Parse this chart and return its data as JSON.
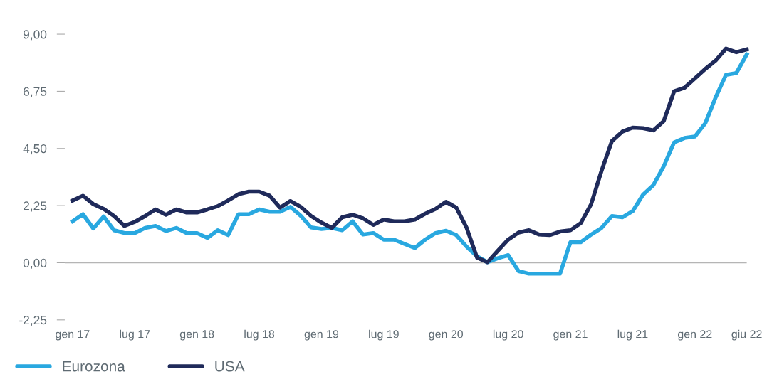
{
  "chart_data": {
    "type": "line",
    "categories": [
      "gen 17",
      null,
      null,
      null,
      null,
      null,
      "lug 17",
      null,
      null,
      null,
      null,
      null,
      "gen 18",
      null,
      null,
      null,
      null,
      null,
      "lug 18",
      null,
      null,
      null,
      null,
      null,
      "gen 19",
      null,
      null,
      null,
      null,
      null,
      "lug 19",
      null,
      null,
      null,
      null,
      null,
      "gen 20",
      null,
      null,
      null,
      null,
      null,
      "lug 20",
      null,
      null,
      null,
      null,
      null,
      "gen 21",
      null,
      null,
      null,
      null,
      null,
      "lug 21",
      null,
      null,
      null,
      null,
      null,
      "gen 22",
      null,
      null,
      null,
      null,
      "giu 22"
    ],
    "series": [
      {
        "name": "Eurozona",
        "color": "#29a8e0",
        "values": [
          1.63,
          1.91,
          1.35,
          1.82,
          1.28,
          1.17,
          1.17,
          1.37,
          1.45,
          1.25,
          1.37,
          1.17,
          1.17,
          0.98,
          1.28,
          1.09,
          1.91,
          1.91,
          2.1,
          2.01,
          2.01,
          2.2,
          1.85,
          1.39,
          1.33,
          1.37,
          1.28,
          1.63,
          1.11,
          1.17,
          0.91,
          0.91,
          0.74,
          0.58,
          0.91,
          1.17,
          1.26,
          1.09,
          0.63,
          0.25,
          0.02,
          0.18,
          0.3,
          -0.33,
          -0.43,
          -0.43,
          -0.43,
          -0.43,
          0.81,
          0.81,
          1.11,
          1.37,
          1.84,
          1.79,
          2.03,
          2.68,
          3.06,
          3.8,
          4.74,
          4.91,
          4.97,
          5.49,
          6.51,
          7.4,
          7.47,
          8.2
        ]
      },
      {
        "name": "USA",
        "color": "#1f2a5a",
        "values": [
          2.45,
          2.64,
          2.31,
          2.12,
          1.84,
          1.45,
          1.61,
          1.84,
          2.1,
          1.89,
          2.1,
          1.98,
          1.98,
          2.1,
          2.23,
          2.45,
          2.7,
          2.8,
          2.8,
          2.64,
          2.17,
          2.43,
          2.2,
          1.84,
          1.58,
          1.37,
          1.79,
          1.89,
          1.75,
          1.49,
          1.7,
          1.63,
          1.63,
          1.7,
          1.93,
          2.12,
          2.4,
          2.17,
          1.37,
          0.2,
          0.02,
          0.47,
          0.91,
          1.19,
          1.28,
          1.11,
          1.09,
          1.23,
          1.28,
          1.56,
          2.31,
          3.62,
          4.79,
          5.16,
          5.32,
          5.3,
          5.21,
          5.58,
          6.75,
          6.89,
          7.26,
          7.63,
          7.96,
          8.43,
          8.29,
          8.4
        ]
      }
    ],
    "ylim": [
      -2.25,
      9
    ],
    "yticks": [
      {
        "value": -2.25,
        "label": "-2,25"
      },
      {
        "value": 0,
        "label": "0,00"
      },
      {
        "value": 2.25,
        "label": "2,25"
      },
      {
        "value": 4.5,
        "label": "4,50"
      },
      {
        "value": 6.75,
        "label": "6,75"
      },
      {
        "value": 9,
        "label": "9,00"
      }
    ],
    "ref_lines": [
      {
        "axis": "y",
        "value": 0,
        "color": "#b5b5b5"
      }
    ],
    "grid": false,
    "legend": "bottom left",
    "marker": "none",
    "line_style": "solid"
  }
}
